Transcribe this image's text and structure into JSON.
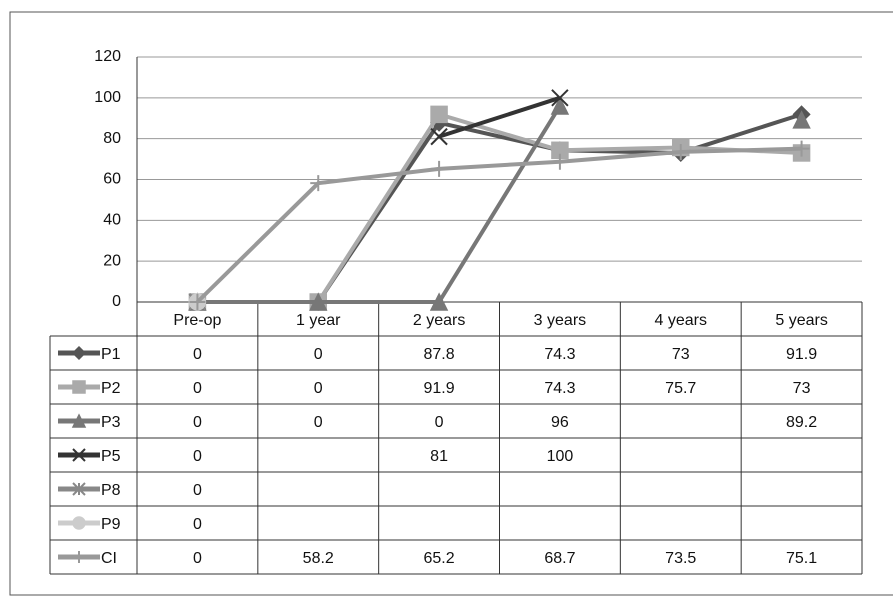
{
  "chart_data": {
    "type": "line",
    "categories": [
      "Pre-op",
      "1 year",
      "2 years",
      "3 years",
      "4 years",
      "5 years"
    ],
    "series": [
      {
        "name": "P1",
        "color": "#555555",
        "marker": "diamond",
        "values": [
          0,
          0,
          87.8,
          74.3,
          73,
          91.9
        ]
      },
      {
        "name": "P2",
        "color": "#aaaaaa",
        "marker": "square",
        "values": [
          0,
          0,
          91.9,
          74.3,
          75.7,
          73
        ]
      },
      {
        "name": "P3",
        "color": "#777777",
        "marker": "triangle",
        "values": [
          0,
          0,
          0,
          96,
          null,
          89.2
        ]
      },
      {
        "name": "P5",
        "color": "#333333",
        "marker": "x",
        "values": [
          0,
          null,
          81,
          100,
          null,
          null
        ]
      },
      {
        "name": "P8",
        "color": "#888888",
        "marker": "asterisk",
        "values": [
          0,
          null,
          null,
          null,
          null,
          null
        ]
      },
      {
        "name": "P9",
        "color": "#cccccc",
        "marker": "circle",
        "values": [
          0,
          null,
          null,
          null,
          null,
          null
        ]
      },
      {
        "name": "CI",
        "color": "#999999",
        "marker": "plus",
        "values": [
          0,
          58.2,
          65.2,
          68.7,
          73.5,
          75.1
        ]
      }
    ],
    "ylim": [
      0,
      120
    ],
    "yticks": [
      0,
      20,
      40,
      60,
      80,
      100,
      120
    ],
    "grid": true
  }
}
